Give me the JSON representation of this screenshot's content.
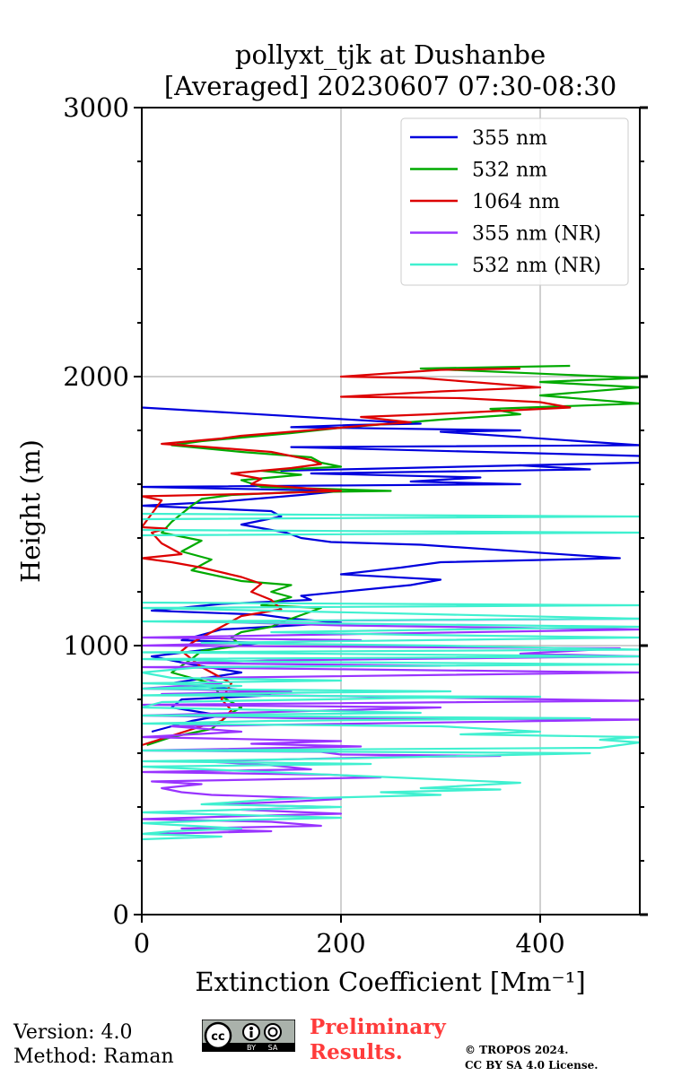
{
  "chart_data": {
    "type": "line",
    "title": "pollyxt_tjk at Dushanbe",
    "subtitle": "[Averaged] 20230607 07:30-08:30",
    "xlabel": "Extinction Coefficient [Mm⁻¹]",
    "ylabel": "Height (m)",
    "xlim": [
      0,
      500
    ],
    "ylim": [
      0,
      3000
    ],
    "xticks": [
      0,
      200,
      400
    ],
    "yticks": [
      0,
      1000,
      2000,
      3000
    ],
    "grid": true,
    "legend_position": "top-right",
    "series": [
      {
        "name": "355 nm",
        "color": "#0000dd",
        "points": [
          [
            0,
            1885
          ],
          [
            280,
            1825
          ],
          [
            210,
            1820
          ],
          [
            150,
            1812
          ],
          [
            380,
            1800
          ],
          [
            300,
            1795
          ],
          [
            500,
            1745
          ],
          [
            150,
            1738
          ],
          [
            500,
            1705
          ],
          [
            500,
            1680
          ],
          [
            140,
            1650
          ],
          [
            380,
            1670
          ],
          [
            450,
            1655
          ],
          [
            170,
            1640
          ],
          [
            340,
            1625
          ],
          [
            270,
            1610
          ],
          [
            380,
            1600
          ],
          [
            0,
            1590
          ],
          [
            200,
            1575
          ],
          [
            160,
            1560
          ],
          [
            80,
            1535
          ],
          [
            0,
            1520
          ],
          [
            130,
            1500
          ],
          [
            140,
            1480
          ],
          [
            100,
            1450
          ],
          [
            145,
            1420
          ],
          [
            160,
            1400
          ],
          [
            190,
            1385
          ],
          [
            280,
            1375
          ],
          [
            480,
            1325
          ],
          [
            300,
            1310
          ],
          [
            260,
            1290
          ],
          [
            200,
            1265
          ],
          [
            300,
            1245
          ],
          [
            270,
            1225
          ],
          [
            160,
            1185
          ],
          [
            170,
            1170
          ],
          [
            80,
            1155
          ],
          [
            10,
            1130
          ],
          [
            120,
            1115
          ],
          [
            150,
            1100
          ],
          [
            200,
            1085
          ],
          [
            80,
            1060
          ],
          [
            40,
            1020
          ],
          [
            120,
            1010
          ],
          [
            10,
            960
          ],
          [
            50,
            930
          ],
          [
            100,
            900
          ],
          [
            30,
            860
          ],
          [
            100,
            835
          ],
          [
            130,
            815
          ],
          [
            40,
            800
          ],
          [
            30,
            770
          ],
          [
            80,
            740
          ],
          [
            50,
            720
          ],
          [
            10,
            680
          ]
        ]
      },
      {
        "name": "532 nm",
        "color": "#00aa00",
        "points": [
          [
            430,
            2040
          ],
          [
            280,
            2030
          ],
          [
            500,
            1995
          ],
          [
            400,
            1980
          ],
          [
            500,
            1960
          ],
          [
            400,
            1930
          ],
          [
            500,
            1900
          ],
          [
            350,
            1880
          ],
          [
            380,
            1860
          ],
          [
            300,
            1840
          ],
          [
            200,
            1810
          ],
          [
            150,
            1790
          ],
          [
            60,
            1760
          ],
          [
            30,
            1745
          ],
          [
            100,
            1720
          ],
          [
            170,
            1700
          ],
          [
            180,
            1680
          ],
          [
            200,
            1665
          ],
          [
            120,
            1650
          ],
          [
            160,
            1635
          ],
          [
            100,
            1615
          ],
          [
            120,
            1590
          ],
          [
            250,
            1575
          ],
          [
            150,
            1570
          ],
          [
            90,
            1560
          ],
          [
            60,
            1545
          ],
          [
            50,
            1520
          ],
          [
            30,
            1460
          ],
          [
            20,
            1420
          ],
          [
            60,
            1390
          ],
          [
            40,
            1350
          ],
          [
            70,
            1320
          ],
          [
            50,
            1280
          ],
          [
            100,
            1240
          ],
          [
            150,
            1225
          ],
          [
            130,
            1200
          ],
          [
            150,
            1180
          ],
          [
            120,
            1150
          ],
          [
            180,
            1140
          ],
          [
            150,
            1100
          ],
          [
            130,
            1070
          ],
          [
            100,
            1050
          ],
          [
            90,
            1030
          ],
          [
            100,
            1000
          ],
          [
            60,
            980
          ],
          [
            50,
            950
          ],
          [
            30,
            900
          ],
          [
            70,
            860
          ],
          [
            80,
            810
          ],
          [
            100,
            770
          ],
          [
            90,
            750
          ],
          [
            80,
            720
          ],
          [
            70,
            690
          ],
          [
            30,
            660
          ],
          [
            5,
            630
          ]
        ]
      },
      {
        "name": "1064 nm",
        "color": "#dd0000",
        "points": [
          [
            380,
            2030
          ],
          [
            300,
            2025
          ],
          [
            200,
            2000
          ],
          [
            280,
            1995
          ],
          [
            400,
            1960
          ],
          [
            300,
            1945
          ],
          [
            200,
            1925
          ],
          [
            320,
            1920
          ],
          [
            400,
            1905
          ],
          [
            430,
            1885
          ],
          [
            290,
            1860
          ],
          [
            220,
            1850
          ],
          [
            270,
            1830
          ],
          [
            230,
            1820
          ],
          [
            200,
            1810
          ],
          [
            100,
            1780
          ],
          [
            80,
            1770
          ],
          [
            20,
            1750
          ],
          [
            60,
            1740
          ],
          [
            130,
            1720
          ],
          [
            150,
            1705
          ],
          [
            170,
            1690
          ],
          [
            180,
            1675
          ],
          [
            150,
            1660
          ],
          [
            90,
            1640
          ],
          [
            120,
            1620
          ],
          [
            110,
            1600
          ],
          [
            200,
            1575
          ],
          [
            120,
            1565
          ],
          [
            0,
            1555
          ],
          [
            20,
            1540
          ],
          [
            0,
            1440
          ],
          [
            25,
            1435
          ],
          [
            10,
            1420
          ],
          [
            20,
            1380
          ],
          [
            40,
            1340
          ],
          [
            0,
            1325
          ],
          [
            30,
            1310
          ],
          [
            60,
            1290
          ],
          [
            100,
            1255
          ],
          [
            120,
            1230
          ],
          [
            110,
            1200
          ],
          [
            130,
            1170
          ],
          [
            140,
            1135
          ],
          [
            100,
            1110
          ],
          [
            90,
            1090
          ],
          [
            70,
            1050
          ],
          [
            50,
            1010
          ],
          [
            40,
            980
          ],
          [
            60,
            920
          ],
          [
            90,
            860
          ],
          [
            80,
            800
          ],
          [
            90,
            760
          ],
          [
            80,
            720
          ],
          [
            60,
            700
          ],
          [
            0,
            630
          ]
        ]
      },
      {
        "name": "355 nm (NR)",
        "color": "#9933ff",
        "points": [
          [
            500,
            1100
          ],
          [
            60,
            1090
          ],
          [
            200,
            1075
          ],
          [
            500,
            1060
          ],
          [
            0,
            1030
          ],
          [
            220,
            1020
          ],
          [
            0,
            1000
          ],
          [
            480,
            990
          ],
          [
            380,
            970
          ],
          [
            500,
            960
          ],
          [
            130,
            945
          ],
          [
            40,
            935
          ],
          [
            300,
            925
          ],
          [
            0,
            920
          ],
          [
            250,
            910
          ],
          [
            500,
            900
          ],
          [
            60,
            880
          ],
          [
            80,
            860
          ],
          [
            0,
            840
          ],
          [
            150,
            830
          ],
          [
            20,
            820
          ],
          [
            200,
            812
          ],
          [
            500,
            795
          ],
          [
            0,
            780
          ],
          [
            300,
            770
          ],
          [
            0,
            740
          ],
          [
            160,
            730
          ],
          [
            500,
            725
          ],
          [
            30,
            700
          ],
          [
            100,
            680
          ],
          [
            0,
            660
          ],
          [
            200,
            645
          ],
          [
            110,
            635
          ],
          [
            220,
            625
          ],
          [
            0,
            610
          ],
          [
            180,
            605
          ],
          [
            200,
            595
          ],
          [
            360,
            590
          ],
          [
            240,
            585
          ],
          [
            60,
            570
          ],
          [
            130,
            555
          ],
          [
            170,
            540
          ],
          [
            0,
            530
          ],
          [
            190,
            520
          ],
          [
            240,
            510
          ],
          [
            10,
            495
          ],
          [
            60,
            485
          ],
          [
            20,
            470
          ],
          [
            40,
            455
          ],
          [
            70,
            445
          ],
          [
            200,
            430
          ],
          [
            150,
            420
          ],
          [
            80,
            410
          ],
          [
            190,
            400
          ],
          [
            100,
            390
          ],
          [
            200,
            375
          ],
          [
            90,
            365
          ],
          [
            0,
            355
          ],
          [
            130,
            345
          ],
          [
            180,
            330
          ],
          [
            40,
            320
          ],
          [
            130,
            310
          ],
          [
            10,
            300
          ]
        ]
      },
      {
        "name": "532 nm (NR)",
        "color": "#40f0d0",
        "points": [
          [
            0,
            1490
          ],
          [
            500,
            1480
          ],
          [
            0,
            1470
          ],
          [
            0,
            1430
          ],
          [
            500,
            1420
          ],
          [
            0,
            1410
          ],
          [
            0,
            1160
          ],
          [
            500,
            1150
          ],
          [
            0,
            1140
          ],
          [
            500,
            1100
          ],
          [
            0,
            1090
          ],
          [
            500,
            1070
          ],
          [
            130,
            1050
          ],
          [
            270,
            1040
          ],
          [
            500,
            1030
          ],
          [
            60,
            1010
          ],
          [
            300,
            1000
          ],
          [
            500,
            985
          ],
          [
            0,
            975
          ],
          [
            500,
            960
          ],
          [
            0,
            950
          ],
          [
            130,
            940
          ],
          [
            500,
            930
          ],
          [
            60,
            920
          ],
          [
            0,
            900
          ],
          [
            30,
            880
          ],
          [
            200,
            870
          ],
          [
            0,
            860
          ],
          [
            100,
            850
          ],
          [
            0,
            840
          ],
          [
            310,
            830
          ],
          [
            160,
            825
          ],
          [
            0,
            815
          ],
          [
            400,
            810
          ],
          [
            260,
            805
          ],
          [
            20,
            790
          ],
          [
            0,
            770
          ],
          [
            280,
            750
          ],
          [
            0,
            740
          ],
          [
            450,
            730
          ],
          [
            130,
            720
          ],
          [
            0,
            710
          ],
          [
            300,
            700
          ],
          [
            400,
            680
          ],
          [
            320,
            670
          ],
          [
            500,
            660
          ],
          [
            460,
            650
          ],
          [
            500,
            640
          ],
          [
            460,
            620
          ],
          [
            0,
            610
          ],
          [
            450,
            600
          ],
          [
            200,
            580
          ],
          [
            0,
            570
          ],
          [
            230,
            560
          ],
          [
            0,
            550
          ],
          [
            380,
            490
          ],
          [
            280,
            470
          ],
          [
            360,
            465
          ],
          [
            240,
            455
          ],
          [
            300,
            445
          ],
          [
            140,
            430
          ],
          [
            60,
            410
          ],
          [
            200,
            400
          ],
          [
            100,
            390
          ],
          [
            0,
            380
          ],
          [
            200,
            360
          ],
          [
            80,
            350
          ],
          [
            0,
            340
          ],
          [
            100,
            320
          ],
          [
            30,
            310
          ],
          [
            0,
            300
          ],
          [
            80,
            290
          ],
          [
            0,
            280
          ]
        ]
      }
    ]
  },
  "footer": {
    "version": "Version: 4.0",
    "method": "Method: Raman",
    "preliminary_line1": "Preliminary",
    "preliminary_line2": "Results.",
    "copyright_line1": "© TROPOS 2024.",
    "copyright_line2": "CC BY SA 4.0 License.",
    "license_badge": {
      "cc": "cc",
      "by": "BY",
      "sa": "SA"
    }
  }
}
